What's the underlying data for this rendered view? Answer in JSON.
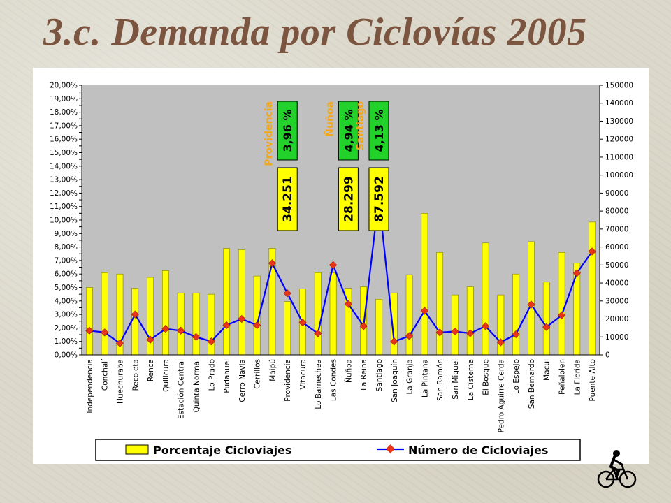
{
  "slide": {
    "title": "3.c. Demanda por Ciclovías 2005"
  },
  "colors": {
    "bar": "#ffff00",
    "bar_stroke": "#7f7f00",
    "line": "#0000ff",
    "marker": "#e8351a",
    "plot_bg": "#c0c0c0",
    "label_orange": "#f2a81c",
    "green_box": "#22d12a",
    "yellow_box": "#ffff00"
  },
  "chart_data": {
    "type": "bar",
    "categories": [
      "Independencia",
      "Conchalí",
      "Huechuraba",
      "Recoleta",
      "Renca",
      "Quilicura",
      "Estación Central",
      "Quinta Normal",
      "Lo Prado",
      "Pudahuel",
      "Cerro Navia",
      "Cerrillos",
      "Maipú",
      "Providencia",
      "Vitacura",
      "Lo Barnechea",
      "Las Condes",
      "Ñuñoa",
      "La Reina",
      "Santiago",
      "San Joaquín",
      "La Granja",
      "La Pintana",
      "San Ramón",
      "San Miguel",
      "La Cisterna",
      "El Bosque",
      "Pedro Aguirre Cerda",
      "Lo Espejo",
      "San Bernardo",
      "Macul",
      "Peñalolen",
      "La Florida",
      "Puente Alto"
    ],
    "series": [
      {
        "name": "Porcentaje Cicloviajes",
        "axis": "left",
        "kind": "bar",
        "values": [
          5.0,
          6.1,
          6.0,
          4.95,
          5.75,
          6.25,
          4.6,
          4.6,
          4.5,
          7.9,
          7.8,
          5.85,
          7.9,
          3.96,
          4.9,
          6.1,
          6.1,
          4.94,
          5.05,
          4.13,
          4.6,
          5.95,
          10.5,
          7.6,
          4.45,
          5.05,
          8.3,
          4.45,
          6.0,
          8.4,
          5.4,
          7.6,
          6.8,
          9.85
        ]
      },
      {
        "name": "Número de Cicloviajes",
        "axis": "right",
        "kind": "line",
        "values": [
          13500,
          12500,
          6500,
          22500,
          8500,
          14500,
          13500,
          10000,
          7500,
          16500,
          20000,
          16500,
          51000,
          34251,
          18000,
          12000,
          50000,
          28299,
          16000,
          87592,
          7500,
          10500,
          24500,
          12500,
          13000,
          12000,
          16000,
          7000,
          11500,
          28000,
          15500,
          22000,
          45500,
          57500
        ]
      }
    ],
    "y_left": {
      "ylim": [
        0,
        20
      ],
      "step": 0.5,
      "tick_labels": [
        "0,00%",
        "1,00%",
        "2,00%",
        "3,00%",
        "4,00%",
        "5,00%",
        "6,00%",
        "7,00%",
        "8,00%",
        "9,00%",
        "10,00%",
        "11,00%",
        "12,00%",
        "13,00%",
        "14,00%",
        "15,00%",
        "16,00%",
        "17,00%",
        "18,00%",
        "19,00%",
        "20,00%"
      ]
    },
    "y_right": {
      "ylim": [
        0,
        150000
      ],
      "tick_labels": [
        "0",
        "10000",
        "20000",
        "30000",
        "40000",
        "50000",
        "60000",
        "70000",
        "80000",
        "90000",
        "100000",
        "110000",
        "120000",
        "130000",
        "140000",
        "150000"
      ]
    },
    "legend": {
      "position": "bottom",
      "items": [
        "Porcentaje Cicloviajes",
        "Número de Cicloviajes"
      ]
    },
    "annotations": [
      {
        "category": "Providencia",
        "name": "Providencia",
        "percent": "3,96 %",
        "count": "34.251"
      },
      {
        "category": "Ñuñoa",
        "name": "Ñuñoa",
        "percent": "4,94 %",
        "count": "28.299"
      },
      {
        "category": "Santiago",
        "name": "Santiago",
        "percent": "4,13 %",
        "count": "87.592"
      }
    ],
    "grid": false,
    "plot_background": "gray"
  },
  "icon": {
    "name": "cyclist-icon"
  }
}
